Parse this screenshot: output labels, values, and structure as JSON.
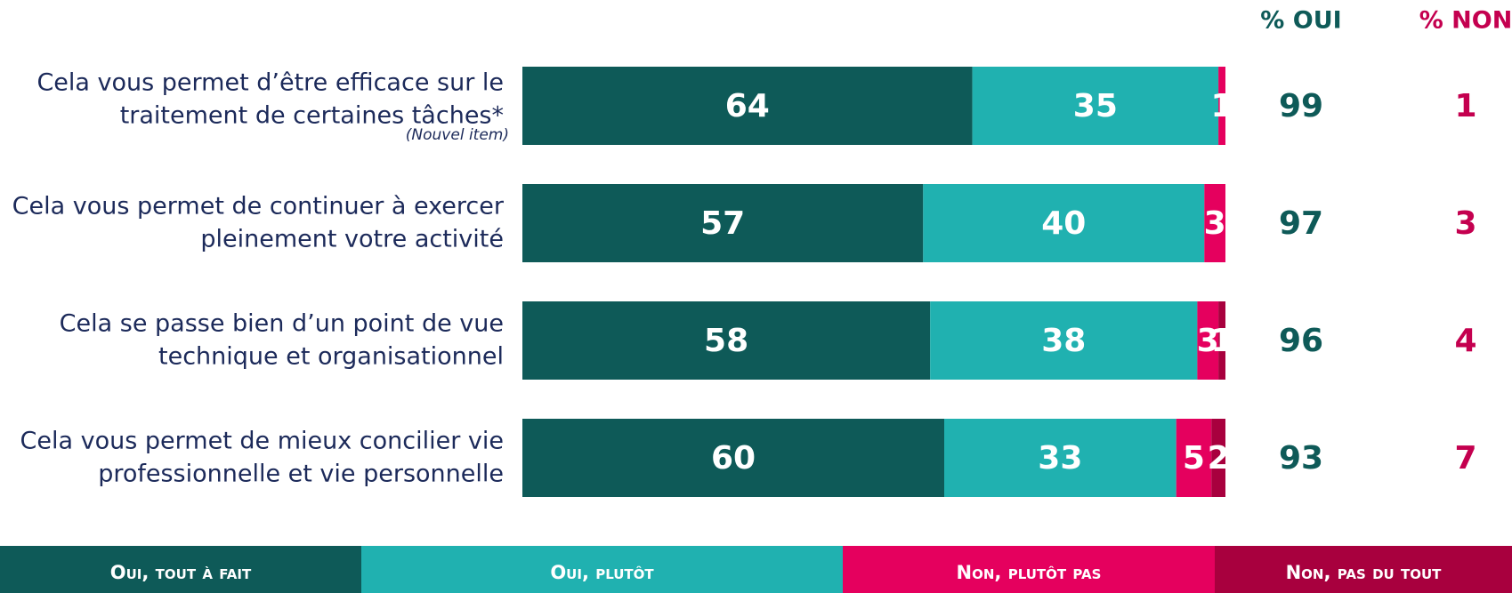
{
  "chart_data": {
    "type": "stacked-bar-horizontal",
    "categories": [
      [
        "Cela vous permet d’être efficace sur le",
        "traitement de certaines tâches*"
      ],
      [
        "Cela vous permet de continuer à exercer",
        "pleinement votre activité"
      ],
      [
        "Cela se passe bien d’un point de vue",
        "technique et organisationnel"
      ],
      [
        "Cela vous permet de mieux concilier vie",
        "professionnelle et vie personnelle"
      ]
    ],
    "category_notes": [
      "(Nouvel item)",
      null,
      null,
      null
    ],
    "xlim": [
      0,
      100
    ],
    "series": [
      {
        "name": "Oui, tout à fait",
        "color": "#0e5a58",
        "values": [
          64,
          57,
          58,
          60
        ]
      },
      {
        "name": "Oui, plutôt",
        "color": "#20b1b0",
        "values": [
          35,
          40,
          38,
          33
        ]
      },
      {
        "name": "Non, plutôt pas",
        "color": "#e5005e",
        "values": [
          1,
          3,
          3,
          5
        ]
      },
      {
        "name": "Non, pas du tout",
        "color": "#a8003e",
        "values": [
          null,
          null,
          1,
          2
        ]
      }
    ],
    "totals": [
      {
        "name": "% OUI",
        "color": "#0e5a58",
        "values": [
          99,
          97,
          96,
          93
        ]
      },
      {
        "name": "% NON",
        "color": "#c4004f",
        "values": [
          1,
          3,
          4,
          7
        ]
      }
    ]
  }
}
